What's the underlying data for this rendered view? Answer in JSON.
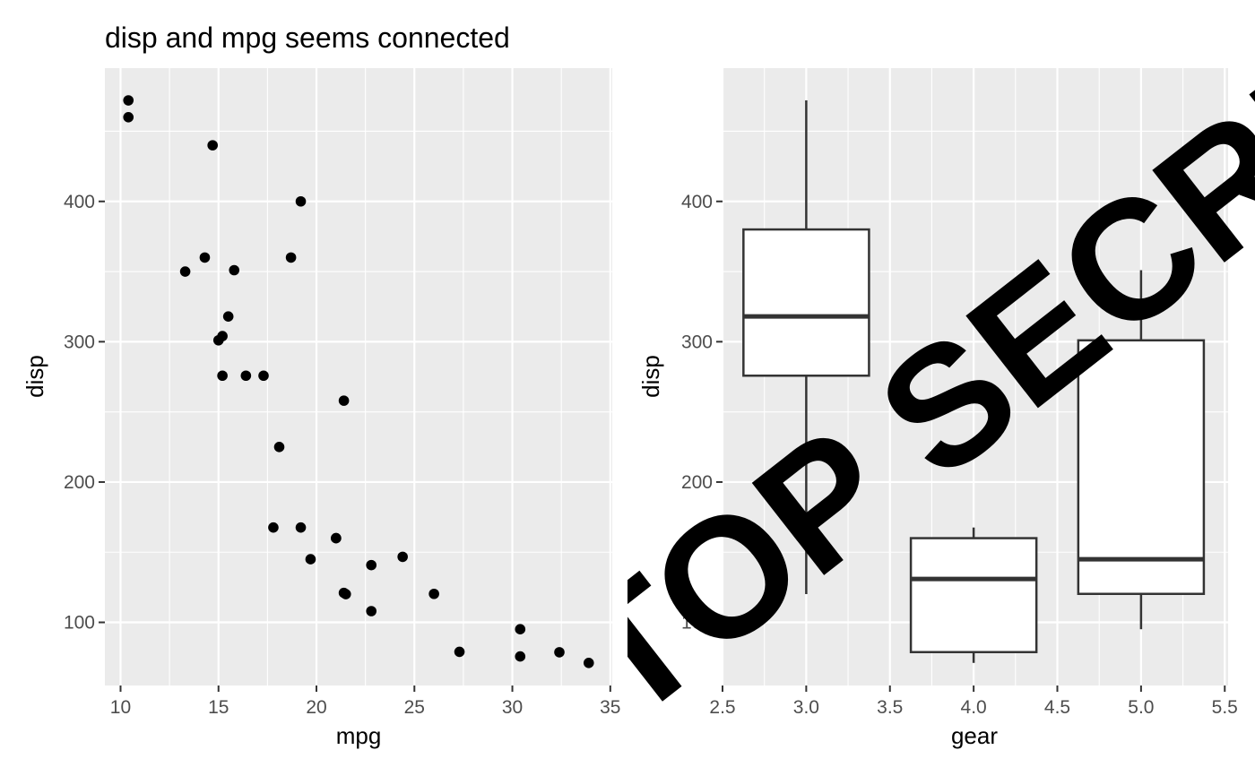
{
  "chart_data": [
    {
      "type": "scatter",
      "title": "disp and mpg seems connected",
      "xlabel": "mpg",
      "ylabel": "disp",
      "xlim": [
        9.2,
        35.1
      ],
      "ylim": [
        55,
        495
      ],
      "x_ticks": [
        10,
        15,
        20,
        25,
        30,
        35
      ],
      "y_ticks": [
        100,
        200,
        300,
        400
      ],
      "grid": true,
      "points": [
        {
          "x": 21.0,
          "y": 160
        },
        {
          "x": 21.0,
          "y": 160
        },
        {
          "x": 22.8,
          "y": 108
        },
        {
          "x": 21.4,
          "y": 258
        },
        {
          "x": 18.7,
          "y": 360
        },
        {
          "x": 18.1,
          "y": 225
        },
        {
          "x": 14.3,
          "y": 360
        },
        {
          "x": 24.4,
          "y": 146.7
        },
        {
          "x": 22.8,
          "y": 140.8
        },
        {
          "x": 19.2,
          "y": 167.6
        },
        {
          "x": 17.8,
          "y": 167.6
        },
        {
          "x": 16.4,
          "y": 275.8
        },
        {
          "x": 17.3,
          "y": 275.8
        },
        {
          "x": 15.2,
          "y": 275.8
        },
        {
          "x": 10.4,
          "y": 472
        },
        {
          "x": 10.4,
          "y": 460
        },
        {
          "x": 14.7,
          "y": 440
        },
        {
          "x": 32.4,
          "y": 78.7
        },
        {
          "x": 30.4,
          "y": 75.7
        },
        {
          "x": 33.9,
          "y": 71.1
        },
        {
          "x": 21.5,
          "y": 120.1
        },
        {
          "x": 15.5,
          "y": 318
        },
        {
          "x": 15.2,
          "y": 304
        },
        {
          "x": 13.3,
          "y": 350
        },
        {
          "x": 19.2,
          "y": 400
        },
        {
          "x": 27.3,
          "y": 79
        },
        {
          "x": 26.0,
          "y": 120.3
        },
        {
          "x": 30.4,
          "y": 95.1
        },
        {
          "x": 15.8,
          "y": 351
        },
        {
          "x": 19.7,
          "y": 145
        },
        {
          "x": 15.0,
          "y": 301
        },
        {
          "x": 21.4,
          "y": 121
        }
      ]
    },
    {
      "type": "box",
      "xlabel": "gear",
      "ylabel": "disp",
      "xlim": [
        2.5,
        5.52
      ],
      "ylim": [
        55,
        495
      ],
      "x_ticks": [
        "2.5",
        "3.0",
        "3.5",
        "4.0",
        "4.5",
        "5.0",
        "5.5"
      ],
      "y_ticks": [
        100,
        200,
        300,
        400
      ],
      "grid": true,
      "boxes": [
        {
          "x": 3.0,
          "min": 120.1,
          "q1": 275.8,
          "median": 318,
          "q3": 380,
          "max": 472
        },
        {
          "x": 4.0,
          "min": 71.1,
          "q1": 78.8,
          "median": 130.9,
          "q3": 160,
          "max": 167.6
        },
        {
          "x": 5.0,
          "min": 95.1,
          "q1": 120.3,
          "median": 145,
          "q3": 301,
          "max": 351
        }
      ]
    }
  ],
  "watermark": "TOP SECRET"
}
